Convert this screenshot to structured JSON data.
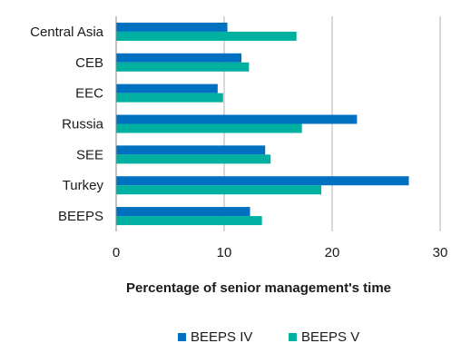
{
  "chart_data": {
    "type": "bar",
    "orientation": "horizontal",
    "title": "",
    "xlabel": "Percentage of senior management's time",
    "ylabel": "",
    "categories": [
      "Central Asia",
      "CEB",
      "EEC",
      "Russia",
      "SEE",
      "Turkey",
      "BEEPS"
    ],
    "series": [
      {
        "name": "BEEPS IV",
        "color": "#0070c0",
        "values": [
          10.3,
          11.6,
          9.4,
          22.3,
          13.8,
          27.1,
          12.4
        ]
      },
      {
        "name": "BEEPS V",
        "color": "#00b0a0",
        "values": [
          16.7,
          12.3,
          9.9,
          17.2,
          14.3,
          19.0,
          13.5
        ]
      }
    ],
    "xlim": [
      0,
      30
    ],
    "xticks": [
      "0",
      "10",
      "20",
      "30"
    ],
    "grid": "vertical",
    "legend_position": "bottom"
  }
}
